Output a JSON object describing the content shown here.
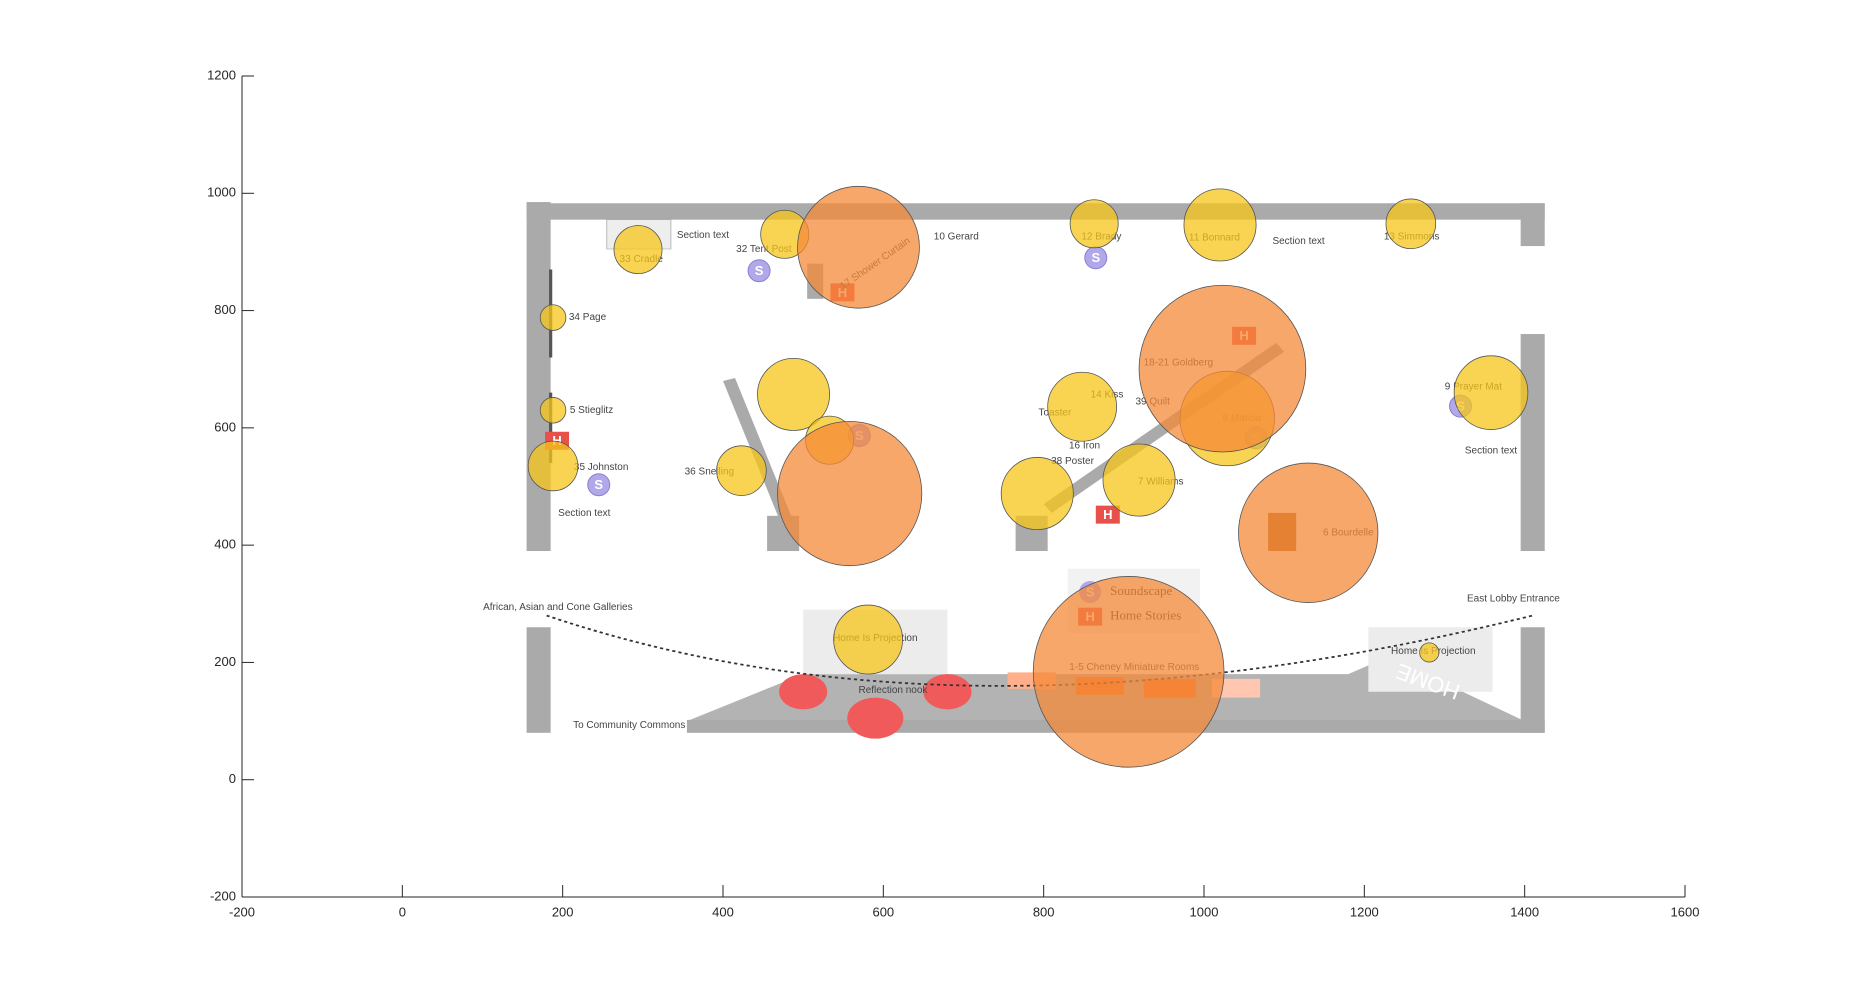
{
  "chart_data": {
    "type": "scatter",
    "xlim": [
      -200,
      1600
    ],
    "ylim": [
      -200,
      1200
    ],
    "xticks": [
      -200,
      0,
      200,
      400,
      600,
      800,
      1000,
      1200,
      1400,
      1600
    ],
    "yticks": [
      -200,
      0,
      200,
      400,
      600,
      800,
      1000,
      1200
    ],
    "series": [
      {
        "color": "#f5c518",
        "x": [
          294,
          477,
          863,
          1020,
          1258,
          188,
          188,
          188,
          488,
          533,
          423,
          848,
          792,
          919,
          1029,
          1358,
          581,
          1281
        ],
        "values": [
          904,
          930,
          948,
          946,
          948,
          788,
          630,
          535,
          657,
          579,
          527,
          636,
          488,
          511,
          616,
          660,
          239,
          217
        ],
        "sizes": [
          30,
          30,
          30,
          45,
          31,
          16,
          16,
          31,
          45,
          30,
          31,
          43,
          45,
          45,
          59,
          46,
          43,
          12
        ]
      },
      {
        "color": "#f5893a",
        "x": [
          569,
          558,
          1023,
          1130,
          906
        ],
        "values": [
          908,
          488,
          701,
          421,
          184
        ],
        "sizes": [
          76,
          90,
          104,
          87,
          119
        ]
      }
    ],
    "legend": [
      {
        "icon": "S",
        "label": "Soundscape"
      },
      {
        "icon": "H",
        "label": "Home Stories"
      }
    ],
    "annotations": [
      "Section text",
      "32 Tent Post",
      "10 Gerard",
      "12 Brady",
      "11 Bonnard",
      "Section text",
      "13 Simmons",
      "33 Cradle",
      "34 Page",
      "5 Stieglitz",
      "35 Johnston",
      "Section text",
      "36 Snelling",
      "18-21 Goldberg",
      "14 Kiss",
      "39 Quilt",
      "Toaster",
      "8 Marcia",
      "16 Iron",
      "38 Poster",
      "7 Williams",
      "6 Bourdelle",
      "9 Prayer Mat",
      "Section text",
      "Home Is Projection",
      "Home Is Projection",
      "Reflection nook",
      "1-5 Cheney Miniature Rooms",
      "African, Asian and Cone Galleries",
      "East Lobby Entrance",
      "To Community Commons",
      "17 Shower Curtain",
      "HOME"
    ]
  }
}
